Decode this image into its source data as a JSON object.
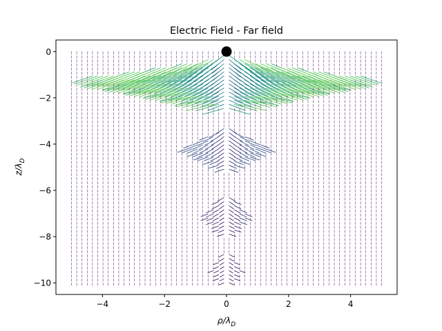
{
  "chart_data": {
    "type": "quiver",
    "title": "Electric Field - Far field",
    "xlabel": {
      "base": "ρ/λ",
      "sub": "D"
    },
    "ylabel": {
      "base": "z/λ",
      "sub": "D"
    },
    "xlim": [
      -5.5,
      5.5
    ],
    "ylim": [
      -10.5,
      0.5
    ],
    "xticks": [
      -4,
      -2,
      0,
      2,
      4
    ],
    "yticks": [
      0,
      -2,
      -4,
      -6,
      -8,
      -10
    ],
    "xtick_labels": [
      "−4",
      "−2",
      "0",
      "2",
      "4"
    ],
    "ytick_labels": [
      "0",
      "−2",
      "−4",
      "−6",
      "−8",
      "−10"
    ],
    "grid": false,
    "colormap": "viridis",
    "colormap_colors": [
      "#440154",
      "#3b528b",
      "#21918c",
      "#5ec962",
      "#fde725"
    ],
    "field_extent": {
      "rho": [
        -5,
        5
      ],
      "z": [
        -10,
        0
      ]
    },
    "source_point": {
      "rho": 0,
      "z": 0
    },
    "marker_color": "#000000",
    "lobes": [
      {
        "center_z": -1.1,
        "max_half_width_rho": 4.7,
        "peak_magnitude": 1.0
      },
      {
        "center_z": -4.2,
        "max_half_width_rho": 1.4,
        "peak_magnitude": 0.35
      },
      {
        "center_z": -7.1,
        "max_half_width_rho": 0.8,
        "peak_magnitude": 0.22
      },
      {
        "center_z": -9.5,
        "max_half_width_rho": 0.5,
        "peak_magnitude": 0.15
      }
    ]
  }
}
